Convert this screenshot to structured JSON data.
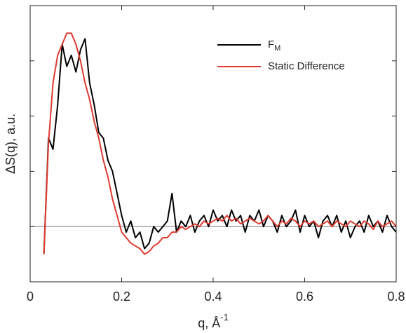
{
  "chart_data": {
    "type": "line",
    "xlabel": "q, Å",
    "xlabel_superscript": "-1",
    "ylabel": "ΔS(q), a.u.",
    "xlim": [
      0,
      0.8
    ],
    "xticks": [
      0,
      0.2,
      0.4,
      0.6,
      0.8
    ],
    "ylim": [
      -1,
      4
    ],
    "yticks": [
      -1,
      0,
      1,
      2,
      3,
      4
    ],
    "hline": 0,
    "hline_color": "#888888",
    "x": [
      0.03,
      0.04,
      0.05,
      0.06,
      0.07,
      0.08,
      0.09,
      0.1,
      0.11,
      0.12,
      0.13,
      0.14,
      0.15,
      0.16,
      0.17,
      0.18,
      0.19,
      0.2,
      0.21,
      0.22,
      0.23,
      0.24,
      0.25,
      0.26,
      0.27,
      0.28,
      0.29,
      0.3,
      0.31,
      0.32,
      0.33,
      0.34,
      0.35,
      0.36,
      0.37,
      0.38,
      0.39,
      0.4,
      0.41,
      0.42,
      0.43,
      0.44,
      0.45,
      0.46,
      0.47,
      0.48,
      0.49,
      0.5,
      0.51,
      0.52,
      0.53,
      0.54,
      0.55,
      0.56,
      0.57,
      0.58,
      0.59,
      0.6,
      0.61,
      0.62,
      0.63,
      0.64,
      0.65,
      0.66,
      0.67,
      0.68,
      0.69,
      0.7,
      0.71,
      0.72,
      0.73,
      0.74,
      0.75,
      0.76,
      0.77,
      0.78,
      0.79,
      0.8
    ],
    "series": [
      {
        "name": "F",
        "subscript": "M",
        "color": "#000000",
        "values": [
          -0.5,
          1.6,
          1.4,
          2.2,
          3.3,
          2.9,
          3.1,
          2.8,
          3.2,
          3.4,
          2.6,
          2.2,
          1.7,
          1.6,
          1.2,
          1.0,
          0.6,
          0.2,
          -0.1,
          0.1,
          -0.2,
          -0.1,
          -0.4,
          -0.3,
          0.0,
          -0.1,
          0.0,
          0.1,
          0.6,
          -0.1,
          0.1,
          0.0,
          0.2,
          -0.1,
          0.1,
          0.2,
          0.0,
          0.3,
          0.1,
          0.2,
          0.0,
          0.3,
          0.1,
          0.2,
          -0.1,
          0.2,
          0.1,
          0.3,
          0.0,
          0.2,
          0.1,
          -0.1,
          0.2,
          0.0,
          0.1,
          0.3,
          -0.1,
          0.2,
          0.0,
          0.1,
          -0.2,
          0.1,
          0.2,
          0.0,
          0.2,
          -0.1,
          0.1,
          -0.2,
          0.0,
          0.1,
          -0.1,
          0.2,
          0.0,
          0.1,
          -0.1,
          0.2,
          0.0,
          -0.1
        ]
      },
      {
        "name": "Static Difference",
        "color": "#e03a2f",
        "values": [
          -0.5,
          1.5,
          2.6,
          3.1,
          3.3,
          3.5,
          3.5,
          3.3,
          3.0,
          2.6,
          2.3,
          1.9,
          1.6,
          1.2,
          0.9,
          0.5,
          0.2,
          -0.1,
          -0.2,
          -0.3,
          -0.35,
          -0.4,
          -0.5,
          -0.45,
          -0.35,
          -0.3,
          -0.2,
          -0.2,
          -0.1,
          -0.1,
          0.0,
          -0.05,
          0.0,
          0.05,
          0.0,
          0.1,
          0.05,
          0.1,
          0.15,
          0.1,
          0.2,
          0.1,
          0.15,
          0.05,
          0.1,
          0.15,
          0.1,
          0.05,
          0.1,
          0.2,
          0.1,
          0.0,
          0.1,
          0.05,
          0.15,
          0.1,
          0.0,
          0.1,
          0.05,
          0.1,
          0.0,
          0.05,
          0.1,
          0.0,
          0.1,
          0.05,
          0.0,
          0.1,
          0.05,
          0.0,
          0.1,
          0.05,
          -0.05,
          0.1,
          0.0,
          0.05,
          0.1,
          0.0
        ]
      }
    ]
  }
}
